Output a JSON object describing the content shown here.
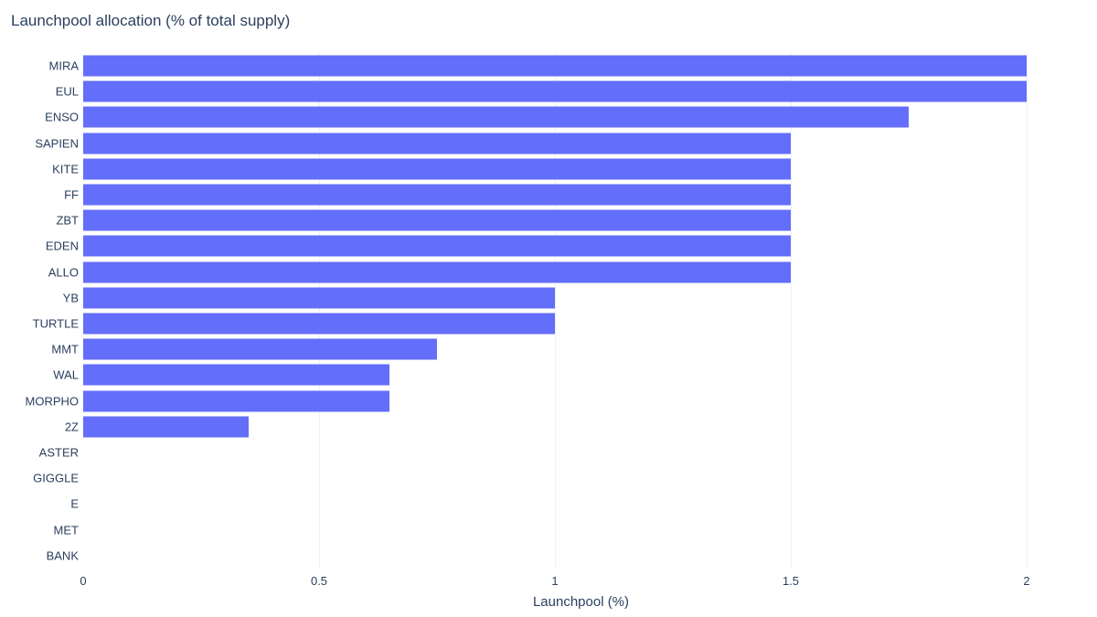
{
  "chart_data": {
    "type": "bar",
    "orientation": "horizontal",
    "title": "Launchpool allocation (% of total supply)",
    "xlabel": "Launchpool (%)",
    "ylabel": "",
    "categories": [
      "MIRA",
      "EUL",
      "ENSO",
      "SAPIEN",
      "KITE",
      "FF",
      "ZBT",
      "EDEN",
      "ALLO",
      "YB",
      "TURTLE",
      "MMT",
      "WAL",
      "MORPHO",
      "2Z",
      "ASTER",
      "GIGGLE",
      "E",
      "MET",
      "BANK"
    ],
    "values": [
      2,
      2,
      1.75,
      1.5,
      1.5,
      1.5,
      1.5,
      1.5,
      1.5,
      1,
      1,
      0.75,
      0.65,
      0.65,
      0.35,
      0,
      0,
      0,
      0,
      0
    ],
    "xlim": [
      0,
      2
    ],
    "xticks": [
      0,
      0.5,
      1,
      1.5,
      2
    ],
    "xtick_labels": [
      "0",
      "0.5",
      "1",
      "1.5",
      "2"
    ],
    "legend": null,
    "grid": true,
    "colors": {
      "bar": "#636efa",
      "text": "#2a3f5f",
      "gridline": "#ebf0f8",
      "background": "#ffffff"
    }
  }
}
